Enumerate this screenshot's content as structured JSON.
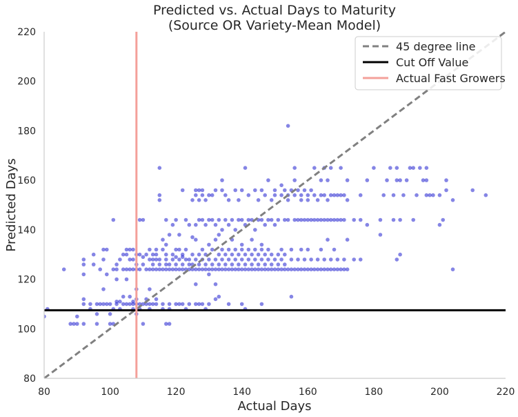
{
  "chart_data": {
    "type": "scatter",
    "title_line1": "Predicted vs. Actual Days to Maturity",
    "title_line2": "(Source OR Variety-Mean Model)",
    "xlabel": "Actual Days",
    "ylabel": "Predicted Days",
    "xlim": [
      80,
      220
    ],
    "ylim": [
      80,
      220
    ],
    "xticks": [
      80,
      100,
      120,
      140,
      160,
      180,
      200,
      220
    ],
    "yticks": [
      80,
      100,
      120,
      140,
      160,
      180,
      200,
      220
    ],
    "grid": false,
    "legend_position": "top-right",
    "legend": [
      "45 degree line",
      "Cut Off Value",
      "Actual Fast Growers"
    ],
    "reference_lines": {
      "diagonal": {
        "from": [
          80,
          80
        ],
        "to": [
          220,
          220
        ],
        "color": "#808080",
        "style": "dashed"
      },
      "cut_off_value": {
        "y": 107.5,
        "color": "#000000"
      },
      "actual_fast_growers": {
        "x": 108,
        "color": "#f4a09a"
      }
    },
    "point_color": "#2020d0",
    "points": [
      [
        80,
        105
      ],
      [
        81,
        108
      ],
      [
        86,
        124
      ],
      [
        88,
        102
      ],
      [
        89,
        102
      ],
      [
        90,
        102
      ],
      [
        90,
        105
      ],
      [
        92,
        102
      ],
      [
        92,
        110
      ],
      [
        92,
        112
      ],
      [
        92,
        122
      ],
      [
        92,
        126
      ],
      [
        92,
        128
      ],
      [
        94,
        110
      ],
      [
        94,
        108
      ],
      [
        95,
        126
      ],
      [
        95,
        130
      ],
      [
        96,
        102
      ],
      [
        96,
        110
      ],
      [
        96,
        106
      ],
      [
        97,
        110
      ],
      [
        97,
        124
      ],
      [
        98,
        110
      ],
      [
        98,
        116
      ],
      [
        98,
        128
      ],
      [
        98,
        132
      ],
      [
        99,
        122
      ],
      [
        99,
        110
      ],
      [
        99,
        132
      ],
      [
        100,
        102
      ],
      [
        100,
        110
      ],
      [
        100,
        106
      ],
      [
        101,
        124
      ],
      [
        101,
        102
      ],
      [
        101,
        108
      ],
      [
        101,
        144
      ],
      [
        102,
        110
      ],
      [
        102,
        111
      ],
      [
        102,
        120
      ],
      [
        102,
        124
      ],
      [
        102,
        126
      ],
      [
        103,
        108
      ],
      [
        103,
        111
      ],
      [
        103,
        128
      ],
      [
        104,
        110
      ],
      [
        104,
        113
      ],
      [
        104,
        130
      ],
      [
        104,
        124
      ],
      [
        105,
        110
      ],
      [
        105,
        120
      ],
      [
        105,
        124
      ],
      [
        105,
        130
      ],
      [
        105,
        132
      ],
      [
        106,
        110
      ],
      [
        106,
        113
      ],
      [
        106,
        124
      ],
      [
        106,
        128
      ],
      [
        106,
        132
      ],
      [
        107,
        108
      ],
      [
        107,
        110
      ],
      [
        107,
        111
      ],
      [
        107,
        124
      ],
      [
        107,
        128
      ],
      [
        107,
        132
      ],
      [
        108,
        106
      ],
      [
        108,
        110
      ],
      [
        108,
        112
      ],
      [
        108,
        116
      ],
      [
        108,
        124
      ],
      [
        108,
        126
      ],
      [
        108,
        130
      ],
      [
        109,
        108
      ],
      [
        109,
        110
      ],
      [
        109,
        124
      ],
      [
        109,
        130
      ],
      [
        109,
        144
      ],
      [
        110,
        102
      ],
      [
        110,
        110
      ],
      [
        110,
        126
      ],
      [
        110,
        129
      ],
      [
        110,
        144
      ],
      [
        111,
        110
      ],
      [
        111,
        112
      ],
      [
        111,
        124
      ],
      [
        111,
        130
      ],
      [
        112,
        108
      ],
      [
        112,
        110
      ],
      [
        112,
        116
      ],
      [
        112,
        124
      ],
      [
        112,
        128
      ],
      [
        112,
        132
      ],
      [
        113,
        110
      ],
      [
        113,
        124
      ],
      [
        113,
        126
      ],
      [
        113,
        128
      ],
      [
        113,
        130
      ],
      [
        114,
        110
      ],
      [
        114,
        112
      ],
      [
        114,
        124
      ],
      [
        114,
        128
      ],
      [
        114,
        130
      ],
      [
        114,
        132
      ],
      [
        115,
        124
      ],
      [
        115,
        126
      ],
      [
        115,
        128
      ],
      [
        115,
        152
      ],
      [
        115,
        154
      ],
      [
        115,
        165
      ],
      [
        116,
        108
      ],
      [
        116,
        110
      ],
      [
        116,
        124
      ],
      [
        116,
        132
      ],
      [
        116,
        136
      ],
      [
        117,
        102
      ],
      [
        117,
        124
      ],
      [
        117,
        126
      ],
      [
        117,
        128
      ],
      [
        117,
        130
      ],
      [
        117,
        134
      ],
      [
        117,
        144
      ],
      [
        118,
        102
      ],
      [
        118,
        108
      ],
      [
        118,
        110
      ],
      [
        118,
        124
      ],
      [
        118,
        126
      ],
      [
        118,
        138
      ],
      [
        119,
        124
      ],
      [
        119,
        128
      ],
      [
        119,
        130
      ],
      [
        119,
        142
      ],
      [
        120,
        110
      ],
      [
        120,
        124
      ],
      [
        120,
        126
      ],
      [
        120,
        129
      ],
      [
        120,
        132
      ],
      [
        120,
        144
      ],
      [
        121,
        110
      ],
      [
        121,
        124
      ],
      [
        121,
        128
      ],
      [
        121,
        132
      ],
      [
        121,
        138
      ],
      [
        122,
        110
      ],
      [
        122,
        124
      ],
      [
        122,
        126
      ],
      [
        122,
        129
      ],
      [
        122,
        130
      ],
      [
        122,
        156
      ],
      [
        123,
        108
      ],
      [
        123,
        124
      ],
      [
        123,
        128
      ],
      [
        123,
        132
      ],
      [
        123,
        144
      ],
      [
        124,
        110
      ],
      [
        124,
        124
      ],
      [
        124,
        126
      ],
      [
        124,
        128
      ],
      [
        124,
        142
      ],
      [
        125,
        124
      ],
      [
        125,
        126
      ],
      [
        125,
        130
      ],
      [
        125,
        137
      ],
      [
        125,
        152
      ],
      [
        126,
        110
      ],
      [
        126,
        118
      ],
      [
        126,
        124
      ],
      [
        126,
        128
      ],
      [
        126,
        136
      ],
      [
        126,
        142
      ],
      [
        126,
        154
      ],
      [
        126,
        156
      ],
      [
        127,
        110
      ],
      [
        127,
        124
      ],
      [
        127,
        126
      ],
      [
        127,
        130
      ],
      [
        127,
        144
      ],
      [
        127,
        152
      ],
      [
        127,
        156
      ],
      [
        128,
        110
      ],
      [
        128,
        124
      ],
      [
        128,
        128
      ],
      [
        128,
        132
      ],
      [
        128,
        144
      ],
      [
        128,
        154
      ],
      [
        128,
        156
      ],
      [
        129,
        108
      ],
      [
        129,
        124
      ],
      [
        129,
        126
      ],
      [
        129,
        130
      ],
      [
        129,
        142
      ],
      [
        129,
        152
      ],
      [
        130,
        110
      ],
      [
        130,
        122
      ],
      [
        130,
        124
      ],
      [
        130,
        128
      ],
      [
        130,
        134
      ],
      [
        130,
        144
      ],
      [
        130,
        154
      ],
      [
        131,
        124
      ],
      [
        131,
        126
      ],
      [
        131,
        132
      ],
      [
        131,
        144
      ],
      [
        131,
        154
      ],
      [
        132,
        112
      ],
      [
        132,
        118
      ],
      [
        132,
        124
      ],
      [
        132,
        128
      ],
      [
        132,
        136
      ],
      [
        132,
        142
      ],
      [
        132,
        156
      ],
      [
        133,
        113
      ],
      [
        133,
        124
      ],
      [
        133,
        126
      ],
      [
        133,
        130
      ],
      [
        133,
        138
      ],
      [
        133,
        144
      ],
      [
        134,
        124
      ],
      [
        134,
        128
      ],
      [
        134,
        132
      ],
      [
        134,
        140
      ],
      [
        134,
        156
      ],
      [
        134,
        160
      ],
      [
        135,
        124
      ],
      [
        135,
        126
      ],
      [
        135,
        130
      ],
      [
        135,
        144
      ],
      [
        135,
        154
      ],
      [
        136,
        110
      ],
      [
        136,
        124
      ],
      [
        136,
        128
      ],
      [
        136,
        132
      ],
      [
        136,
        142
      ],
      [
        136,
        152
      ],
      [
        137,
        124
      ],
      [
        137,
        126
      ],
      [
        137,
        130
      ],
      [
        137,
        136
      ],
      [
        137,
        144
      ],
      [
        138,
        124
      ],
      [
        138,
        128
      ],
      [
        138,
        132
      ],
      [
        138,
        140
      ],
      [
        138,
        156
      ],
      [
        139,
        124
      ],
      [
        139,
        126
      ],
      [
        139,
        130
      ],
      [
        139,
        144
      ],
      [
        139,
        152
      ],
      [
        140,
        110
      ],
      [
        140,
        124
      ],
      [
        140,
        128
      ],
      [
        140,
        132
      ],
      [
        140,
        134
      ],
      [
        140,
        144
      ],
      [
        140,
        156
      ],
      [
        141,
        108
      ],
      [
        141,
        124
      ],
      [
        141,
        126
      ],
      [
        141,
        130
      ],
      [
        141,
        142
      ],
      [
        141,
        165
      ],
      [
        142,
        124
      ],
      [
        142,
        128
      ],
      [
        142,
        132
      ],
      [
        142,
        144
      ],
      [
        142,
        154
      ],
      [
        143,
        124
      ],
      [
        143,
        126
      ],
      [
        143,
        130
      ],
      [
        143,
        136
      ],
      [
        143,
        144
      ],
      [
        144,
        124
      ],
      [
        144,
        128
      ],
      [
        144,
        132
      ],
      [
        144,
        140
      ],
      [
        144,
        156
      ],
      [
        145,
        124
      ],
      [
        145,
        126
      ],
      [
        145,
        130
      ],
      [
        145,
        144
      ],
      [
        145,
        152
      ],
      [
        146,
        110
      ],
      [
        146,
        124
      ],
      [
        146,
        128
      ],
      [
        146,
        132
      ],
      [
        146,
        134
      ],
      [
        146,
        144
      ],
      [
        146,
        156
      ],
      [
        147,
        124
      ],
      [
        147,
        126
      ],
      [
        147,
        130
      ],
      [
        147,
        142
      ],
      [
        147,
        154
      ],
      [
        148,
        124
      ],
      [
        148,
        128
      ],
      [
        148,
        132
      ],
      [
        148,
        144
      ],
      [
        148,
        160
      ],
      [
        149,
        124
      ],
      [
        149,
        126
      ],
      [
        149,
        130
      ],
      [
        149,
        144
      ],
      [
        149,
        152
      ],
      [
        150,
        124
      ],
      [
        150,
        128
      ],
      [
        150,
        142
      ],
      [
        150,
        154
      ],
      [
        150,
        156
      ],
      [
        151,
        124
      ],
      [
        151,
        126
      ],
      [
        151,
        130
      ],
      [
        151,
        144
      ],
      [
        152,
        124
      ],
      [
        152,
        128
      ],
      [
        152,
        132
      ],
      [
        152,
        154
      ],
      [
        152,
        158
      ],
      [
        153,
        124
      ],
      [
        153,
        126
      ],
      [
        153,
        130
      ],
      [
        153,
        144
      ],
      [
        153,
        156
      ],
      [
        154,
        124
      ],
      [
        154,
        144
      ],
      [
        154,
        152
      ],
      [
        154,
        154
      ],
      [
        154,
        182
      ],
      [
        155,
        113
      ],
      [
        155,
        124
      ],
      [
        155,
        128
      ],
      [
        155,
        132
      ],
      [
        155,
        156
      ],
      [
        156,
        124
      ],
      [
        156,
        144
      ],
      [
        156,
        154
      ],
      [
        156,
        160
      ],
      [
        156,
        165
      ],
      [
        157,
        124
      ],
      [
        157,
        128
      ],
      [
        157,
        144
      ],
      [
        157,
        156
      ],
      [
        158,
        124
      ],
      [
        158,
        132
      ],
      [
        158,
        144
      ],
      [
        158,
        152
      ],
      [
        158,
        154
      ],
      [
        159,
        124
      ],
      [
        159,
        128
      ],
      [
        159,
        144
      ],
      [
        159,
        156
      ],
      [
        160,
        124
      ],
      [
        160,
        132
      ],
      [
        160,
        144
      ],
      [
        160,
        152
      ],
      [
        160,
        154
      ],
      [
        161,
        124
      ],
      [
        161,
        128
      ],
      [
        161,
        144
      ],
      [
        161,
        156
      ],
      [
        162,
        124
      ],
      [
        162,
        144
      ],
      [
        162,
        154
      ],
      [
        162,
        165
      ],
      [
        163,
        124
      ],
      [
        163,
        128
      ],
      [
        163,
        144
      ],
      [
        163,
        152
      ],
      [
        164,
        124
      ],
      [
        164,
        132
      ],
      [
        164,
        144
      ],
      [
        164,
        154
      ],
      [
        164,
        160
      ],
      [
        165,
        124
      ],
      [
        165,
        128
      ],
      [
        165,
        144
      ],
      [
        165,
        154
      ],
      [
        165,
        165
      ],
      [
        166,
        124
      ],
      [
        166,
        136
      ],
      [
        166,
        144
      ],
      [
        166,
        152
      ],
      [
        166,
        160
      ],
      [
        167,
        124
      ],
      [
        167,
        128
      ],
      [
        167,
        144
      ],
      [
        167,
        154
      ],
      [
        167,
        165
      ],
      [
        168,
        124
      ],
      [
        168,
        132
      ],
      [
        168,
        144
      ],
      [
        168,
        154
      ],
      [
        169,
        124
      ],
      [
        169,
        128
      ],
      [
        169,
        144
      ],
      [
        169,
        154
      ],
      [
        170,
        124
      ],
      [
        170,
        144
      ],
      [
        170,
        154
      ],
      [
        170,
        165
      ],
      [
        171,
        124
      ],
      [
        171,
        128
      ],
      [
        171,
        144
      ],
      [
        171,
        154
      ],
      [
        172,
        124
      ],
      [
        172,
        136
      ],
      [
        172,
        152
      ],
      [
        172,
        160
      ],
      [
        174,
        128
      ],
      [
        174,
        144
      ],
      [
        176,
        128
      ],
      [
        176,
        144
      ],
      [
        176,
        154
      ],
      [
        178,
        142
      ],
      [
        178,
        160
      ],
      [
        180,
        165
      ],
      [
        182,
        138
      ],
      [
        182,
        144
      ],
      [
        183,
        154
      ],
      [
        184,
        160
      ],
      [
        185,
        165
      ],
      [
        186,
        144
      ],
      [
        186,
        154
      ],
      [
        187,
        128
      ],
      [
        187,
        160
      ],
      [
        187,
        165
      ],
      [
        188,
        130
      ],
      [
        188,
        144
      ],
      [
        188,
        160
      ],
      [
        189,
        154
      ],
      [
        190,
        160
      ],
      [
        191,
        165
      ],
      [
        192,
        165
      ],
      [
        192,
        144
      ],
      [
        193,
        154
      ],
      [
        194,
        165
      ],
      [
        195,
        160
      ],
      [
        196,
        160
      ],
      [
        196,
        165
      ],
      [
        196,
        154
      ],
      [
        197,
        154
      ],
      [
        198,
        154
      ],
      [
        200,
        142
      ],
      [
        200,
        154
      ],
      [
        201,
        144
      ],
      [
        202,
        160
      ],
      [
        202,
        156
      ],
      [
        204,
        124
      ],
      [
        204,
        152
      ],
      [
        210,
        156
      ],
      [
        214,
        154
      ]
    ]
  }
}
